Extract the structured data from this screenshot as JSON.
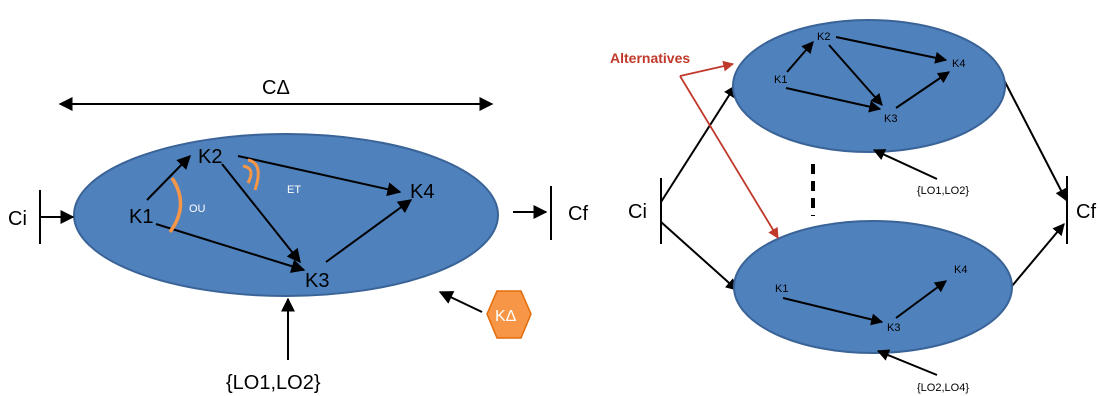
{
  "left": {
    "width_label": "CΔ",
    "initial_state": "Ci",
    "final_state": "Cf",
    "nodes": {
      "k1": "K1",
      "k2": "K2",
      "k3": "K3",
      "k4": "K4"
    },
    "or_label": "OU",
    "and_label": "ET",
    "resource": "{LO1,LO2}",
    "hexagon_label": "KΔ"
  },
  "right": {
    "callout": "Alternatives",
    "initial_state": "Ci",
    "final_state": "Cf",
    "top_nodes": {
      "k1": "K1",
      "k2": "K2",
      "k3": "K3",
      "k4": "K4"
    },
    "top_resource": "{LO1,LO2}",
    "bottom_nodes": {
      "k1": "K1",
      "k3": "K3",
      "k4": "K4"
    },
    "bottom_resource": "{LO2,LO4}"
  },
  "colors": {
    "ellipse_fill": "#4f81bd",
    "ellipse_stroke": "#3a6397",
    "arc_color": "#f79646",
    "callout_color": "#c0392b",
    "hexagon_fill": "#f79646"
  }
}
